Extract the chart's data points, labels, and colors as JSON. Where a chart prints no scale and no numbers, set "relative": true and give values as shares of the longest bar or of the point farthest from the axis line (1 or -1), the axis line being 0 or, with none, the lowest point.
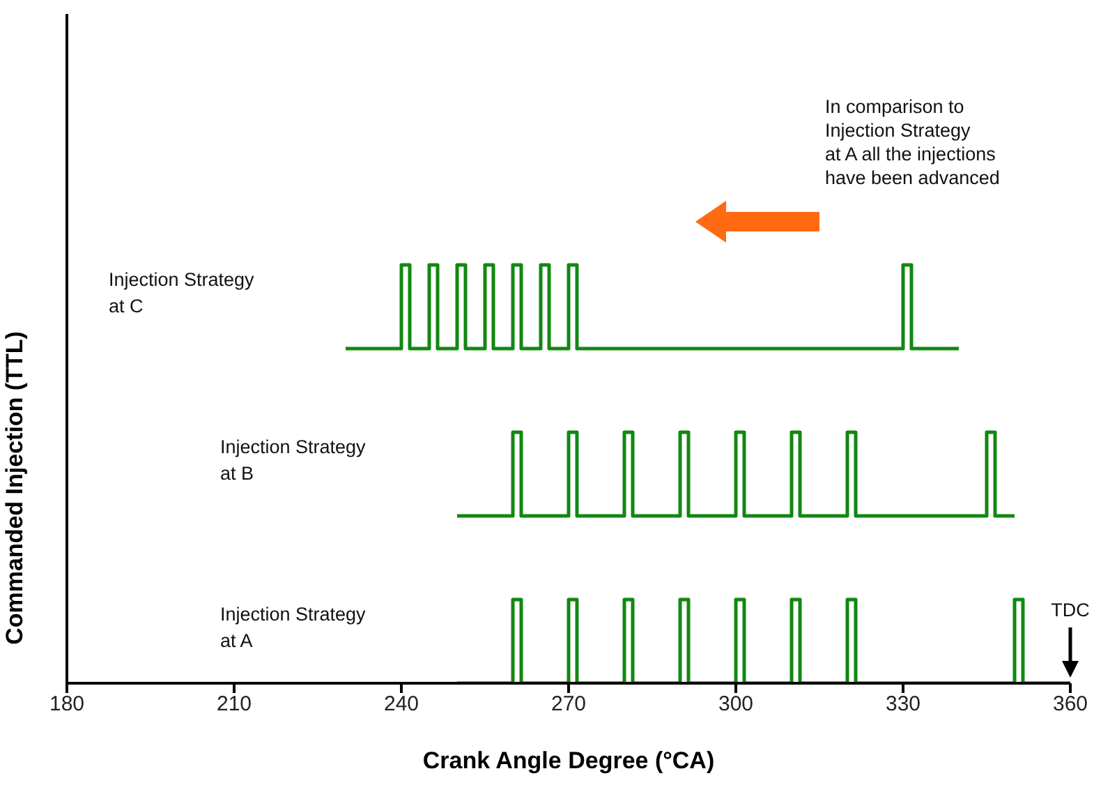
{
  "chart_data": {
    "type": "step",
    "relative": true,
    "xlabel": "Crank Angle Degree (°CA)",
    "ylabel": "Commanded Injection (TTL)",
    "xlim": [
      180,
      360
    ],
    "xticks": [
      180,
      210,
      240,
      270,
      300,
      330,
      360
    ],
    "grid": false,
    "legend": false,
    "marker": "none",
    "line_style": "solid",
    "series": [
      {
        "color": "#118811",
        "x": [
          230,
          240,
          241.5,
          245,
          246.5,
          250,
          251.5,
          255,
          256.5,
          260,
          261.5,
          265,
          266.5,
          270,
          271.5,
          330,
          331.5,
          340
        ],
        "values": [
          0.8,
          1,
          0.8,
          1,
          0.8,
          1,
          0.8,
          1,
          0.8,
          1,
          0.8,
          1,
          0.8,
          1,
          0.8,
          1,
          0.8,
          0.8
        ]
      },
      {
        "color": "#118811",
        "x": [
          250,
          260,
          261.5,
          270,
          271.5,
          280,
          281.5,
          290,
          291.5,
          300,
          301.5,
          310,
          311.5,
          320,
          321.5,
          345,
          346.5,
          350
        ],
        "values": [
          0.4,
          0.6,
          0.4,
          0.6,
          0.4,
          0.6,
          0.4,
          0.6,
          0.4,
          0.6,
          0.4,
          0.6,
          0.4,
          0.6,
          0.4,
          0.6,
          0.4,
          0.4
        ]
      },
      {
        "color": "#118811",
        "x": [
          250,
          260,
          261.5,
          270,
          271.5,
          280,
          281.5,
          290,
          291.5,
          300,
          301.5,
          310,
          311.5,
          320,
          321.5,
          350,
          351.5,
          360
        ],
        "values": [
          0,
          0.2,
          0,
          0.2,
          0,
          0.2,
          0,
          0.2,
          0,
          0.2,
          0,
          0.2,
          0,
          0.2,
          0,
          0.2,
          0,
          0
        ]
      }
    ],
    "annotations": [
      "Injection Strategy\nat C",
      "Injection Strategy\nat B",
      "Injection Strategy\nat A",
      "In comparison to\nInjection Strategy\nat A all the injections\nhave been advanced",
      "TDC"
    ]
  }
}
